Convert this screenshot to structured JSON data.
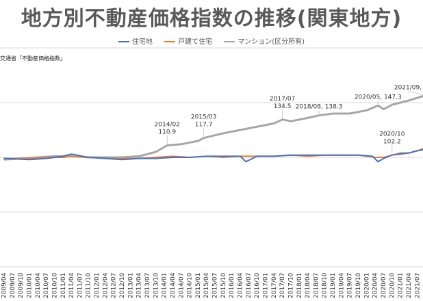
{
  "chart_data": {
    "type": "line",
    "title": "地方別不動産価格指数の推移(関東地方)",
    "source": "交通省「不動産価格指数」",
    "legend_position": "top",
    "grid": true,
    "x_start": "2009-04",
    "x_end": "2021-09",
    "tick_labels": [
      "2009/04",
      "2009/07",
      "2009/10",
      "2010/01",
      "2010/04",
      "2010/07",
      "2010/10",
      "2011/01",
      "2011/04",
      "2011/07",
      "2011/10",
      "2012/01",
      "2012/04",
      "2012/07",
      "2012/10",
      "2013/01",
      "2013/04",
      "2013/07",
      "2013/10",
      "2014/01",
      "2014/04",
      "2014/07",
      "2014/10",
      "2015/01",
      "2015/04",
      "2015/07",
      "2015/10",
      "2016/01",
      "2016/04",
      "2016/07",
      "2016/10",
      "2017/01",
      "2017/04",
      "2017/07",
      "2017/10",
      "2018/01",
      "2018/04",
      "2018/07",
      "2018/10",
      "2019/01",
      "2019/04",
      "2019/07",
      "2019/10",
      "2020/01",
      "2020/04",
      "2020/07",
      "2020/10",
      "2021/01",
      "2021/04",
      "2021/07"
    ],
    "ylim": [
      0,
      200
    ],
    "yticks": [
      0,
      50,
      100,
      150,
      200
    ],
    "series": [
      {
        "name": "住宅地",
        "color": "#4472C4",
        "points": [
          [
            "2009-04",
            99
          ],
          [
            "2010-01",
            98
          ],
          [
            "2010-07",
            99
          ],
          [
            "2011-01",
            101
          ],
          [
            "2011-04",
            103
          ],
          [
            "2011-10",
            100
          ],
          [
            "2012-04",
            99
          ],
          [
            "2012-10",
            98
          ],
          [
            "2013-04",
            99
          ],
          [
            "2013-10",
            99
          ],
          [
            "2014-04",
            100
          ],
          [
            "2014-10",
            100
          ],
          [
            "2015-04",
            101
          ],
          [
            "2015-10",
            101
          ],
          [
            "2016-04",
            101
          ],
          [
            "2016-06",
            96
          ],
          [
            "2016-10",
            101
          ],
          [
            "2017-04",
            101
          ],
          [
            "2017-10",
            102
          ],
          [
            "2018-04",
            102
          ],
          [
            "2018-10",
            102
          ],
          [
            "2019-04",
            102
          ],
          [
            "2019-10",
            102
          ],
          [
            "2020-03",
            101
          ],
          [
            "2020-05",
            96
          ],
          [
            "2020-07",
            99
          ],
          [
            "2020-10",
            102.2
          ],
          [
            "2021-01",
            103
          ],
          [
            "2021-04",
            104
          ],
          [
            "2021-07",
            106
          ],
          [
            "2021-09",
            107
          ]
        ]
      },
      {
        "name": "戸建て住宅",
        "color": "#ED7D31",
        "points": [
          [
            "2009-04",
            99
          ],
          [
            "2010-01",
            99
          ],
          [
            "2010-07",
            100
          ],
          [
            "2011-01",
            100
          ],
          [
            "2011-04",
            101
          ],
          [
            "2011-10",
            100
          ],
          [
            "2012-04",
            99
          ],
          [
            "2012-10",
            99
          ],
          [
            "2013-04",
            99
          ],
          [
            "2013-10",
            100
          ],
          [
            "2014-04",
            101
          ],
          [
            "2014-10",
            100
          ],
          [
            "2015-04",
            101
          ],
          [
            "2015-10",
            100
          ],
          [
            "2016-04",
            101
          ],
          [
            "2016-10",
            101
          ],
          [
            "2017-04",
            101
          ],
          [
            "2017-10",
            102
          ],
          [
            "2018-04",
            101
          ],
          [
            "2018-10",
            102
          ],
          [
            "2019-04",
            102
          ],
          [
            "2019-10",
            102
          ],
          [
            "2020-04",
            100
          ],
          [
            "2020-07",
            100
          ],
          [
            "2020-10",
            102
          ],
          [
            "2021-01",
            104
          ],
          [
            "2021-04",
            104
          ],
          [
            "2021-07",
            106
          ],
          [
            "2021-09",
            108
          ]
        ]
      },
      {
        "name": "マンション(区分所有)",
        "color": "#A6A6A6",
        "points": [
          [
            "2009-04",
            98
          ],
          [
            "2009-10",
            99
          ],
          [
            "2010-04",
            100
          ],
          [
            "2010-10",
            101
          ],
          [
            "2011-04",
            101
          ],
          [
            "2011-10",
            100
          ],
          [
            "2012-04",
            100
          ],
          [
            "2012-10",
            100
          ],
          [
            "2013-04",
            101
          ],
          [
            "2013-10",
            105
          ],
          [
            "2014-02",
            110.9
          ],
          [
            "2014-07",
            112
          ],
          [
            "2015-01",
            115
          ],
          [
            "2015-03",
            117.7
          ],
          [
            "2015-10",
            122
          ],
          [
            "2016-04",
            125
          ],
          [
            "2016-10",
            128
          ],
          [
            "2017-04",
            131
          ],
          [
            "2017-07",
            134.5
          ],
          [
            "2017-10",
            133
          ],
          [
            "2018-04",
            136
          ],
          [
            "2018-08",
            138.3
          ],
          [
            "2019-01",
            140
          ],
          [
            "2019-07",
            140
          ],
          [
            "2020-01",
            143
          ],
          [
            "2020-05",
            147.3
          ],
          [
            "2020-07",
            144
          ],
          [
            "2020-10",
            148
          ],
          [
            "2021-01",
            150
          ],
          [
            "2021-04",
            152
          ],
          [
            "2021-09",
            156
          ]
        ]
      }
    ],
    "annotations": [
      {
        "date": "2014-02",
        "label": "2014/02",
        "value_text": "110.9",
        "series": "マンション(区分所有)"
      },
      {
        "date": "2015-03",
        "label": "2015/03",
        "value_text": "117.7",
        "series": "マンション(区分所有)"
      },
      {
        "date": "2017-07",
        "label": "2017/07",
        "value_text": "134.5",
        "series": "マンション(区分所有)"
      },
      {
        "date": "2018-08",
        "label": "2018/08, 138.3",
        "value_text": "",
        "series": "マンション(区分所有)"
      },
      {
        "date": "2020-05",
        "label": "2020/05, 147.3",
        "value_text": "",
        "series": "マンション(区分所有)"
      },
      {
        "date": "2021-09",
        "label": "2021/09,",
        "value_text": "",
        "series": "マンション(区分所有)"
      },
      {
        "date": "2020-10",
        "label": "2020/10",
        "value_text": "102.2",
        "series": "住宅地"
      }
    ]
  }
}
